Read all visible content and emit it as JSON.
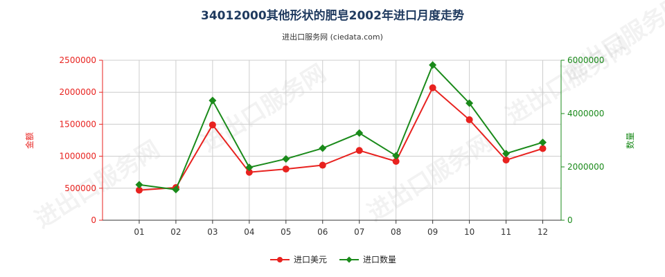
{
  "chart_data": {
    "type": "line",
    "title": "34012000其他形状的肥皂2002年进口月度走势",
    "subtitle": "进出口服务网 (ciedata.com)",
    "categories": [
      "01",
      "02",
      "03",
      "04",
      "05",
      "06",
      "07",
      "08",
      "09",
      "10",
      "11",
      "12"
    ],
    "y_left": {
      "label": "金额",
      "ticks": [
        "0",
        "500000",
        "1000000",
        "1500000",
        "2000000",
        "2500000"
      ],
      "range": [
        0,
        2500000
      ],
      "color": "#e8221f"
    },
    "y_right": {
      "label": "数量",
      "ticks": [
        "0",
        "2000000",
        "4000000",
        "6000000"
      ],
      "range": [
        0,
        6000000
      ],
      "color": "#1a8a1a"
    },
    "series": [
      {
        "name": "进口美元",
        "axis": "left",
        "color": "#e8221f",
        "values": [
          470000,
          510000,
          1490000,
          750000,
          800000,
          860000,
          1090000,
          920000,
          2070000,
          1570000,
          940000,
          1120000
        ]
      },
      {
        "name": "进口数量",
        "axis": "right",
        "color": "#1a8a1a",
        "values": [
          1330000,
          1150000,
          4490000,
          1980000,
          2300000,
          2700000,
          3270000,
          2420000,
          5820000,
          4390000,
          2500000,
          2920000
        ]
      }
    ],
    "grid": true,
    "legend_position": "bottom-center",
    "watermark": "进出口服务网"
  }
}
